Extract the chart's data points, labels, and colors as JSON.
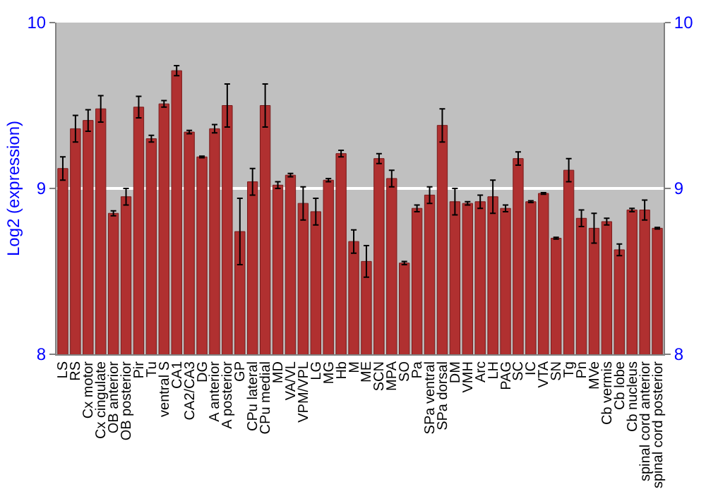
{
  "chart_data": {
    "type": "bar",
    "ylabel": "Log2 (expression)",
    "categories": [
      "LS",
      "RS",
      "Cx motor",
      "Cx cingulate",
      "OB anterior",
      "OB posterior",
      "Pir",
      "Tu",
      "ventral S",
      "CA1",
      "CA2/CA3",
      "DG",
      "A anterior",
      "A posterior",
      "GP",
      "CPu lateral",
      "CPu medial",
      "MD",
      "VA/VL",
      "VPM/VPL",
      "LG",
      "MG",
      "Hb",
      "M",
      "ME",
      "SCN",
      "MPA",
      "SO",
      "Pa",
      "SPa ventral",
      "SPa dorsal",
      "DM",
      "VMH",
      "Arc",
      "LH",
      "PAG",
      "SC",
      "IC",
      "VTA",
      "SN",
      "Tg",
      "Pn",
      "MVe",
      "Cb vermis",
      "Cb lobe",
      "Cb nucleus",
      "spinal cord anterior",
      "spinal cord posterior"
    ],
    "values": [
      9.12,
      9.36,
      9.41,
      9.48,
      8.85,
      8.95,
      9.49,
      9.3,
      9.51,
      9.71,
      9.34,
      9.19,
      9.36,
      9.5,
      8.74,
      9.04,
      9.5,
      9.02,
      9.08,
      8.91,
      8.86,
      9.05,
      9.21,
      8.68,
      8.56,
      9.18,
      9.06,
      8.55,
      8.88,
      8.96,
      9.38,
      8.92,
      8.91,
      8.92,
      8.95,
      8.88,
      9.18,
      8.92,
      8.97,
      8.7,
      9.11,
      8.82,
      8.76,
      8.8,
      8.63,
      8.87,
      8.87,
      8.76
    ],
    "errors": [
      0.07,
      0.08,
      0.065,
      0.08,
      0.015,
      0.05,
      0.065,
      0.02,
      0.02,
      0.03,
      0.01,
      0.005,
      0.025,
      0.13,
      0.2,
      0.08,
      0.13,
      0.02,
      0.01,
      0.1,
      0.08,
      0.01,
      0.02,
      0.07,
      0.095,
      0.03,
      0.05,
      0.01,
      0.02,
      0.05,
      0.1,
      0.08,
      0.01,
      0.04,
      0.1,
      0.02,
      0.04,
      0.005,
      0.005,
      0.005,
      0.07,
      0.05,
      0.09,
      0.02,
      0.035,
      0.01,
      0.06,
      0.005
    ],
    "color": "#b03030",
    "ylim": [
      8,
      10
    ],
    "yticks": [
      8,
      9,
      10
    ],
    "y2lim": [
      8,
      10
    ],
    "y2ticks": [
      8,
      9,
      10
    ],
    "grid": "y"
  }
}
